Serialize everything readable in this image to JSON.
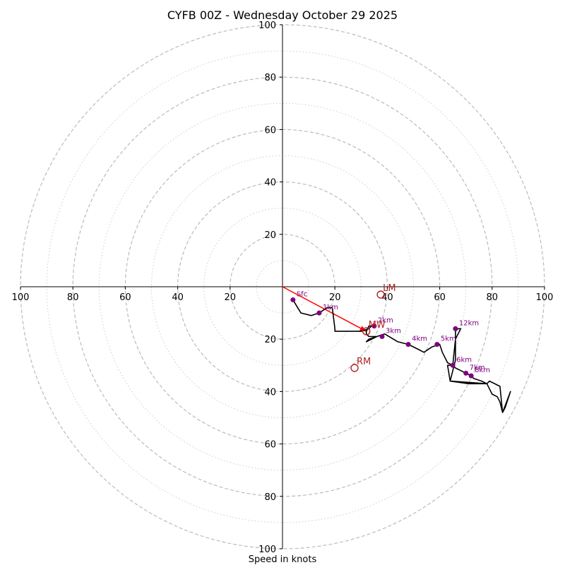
{
  "chart_data": {
    "type": "hodograph",
    "title": "CYFB 00Z - Wednesday October 29 2025",
    "xlabel": "Speed in knots",
    "range": [
      -100,
      100
    ],
    "ring_major": [
      20,
      40,
      60,
      80,
      100
    ],
    "ring_minor": [
      10,
      30,
      50,
      70,
      90
    ],
    "ticks": [
      {
        "v": -100,
        "label": "100"
      },
      {
        "v": -80,
        "label": "80"
      },
      {
        "v": -60,
        "label": "60"
      },
      {
        "v": -40,
        "label": "40"
      },
      {
        "v": -20,
        "label": "20"
      },
      {
        "v": 20,
        "label": "20"
      },
      {
        "v": 40,
        "label": "40"
      },
      {
        "v": 60,
        "label": "60"
      },
      {
        "v": 80,
        "label": "80"
      },
      {
        "v": 100,
        "label": "100"
      }
    ],
    "trace": [
      [
        4,
        -5
      ],
      [
        7,
        -10
      ],
      [
        11,
        -11
      ],
      [
        14,
        -10
      ],
      [
        17,
        -8
      ],
      [
        19,
        -8
      ],
      [
        20,
        -16
      ],
      [
        20,
        -17
      ],
      [
        27,
        -17
      ],
      [
        30,
        -17
      ],
      [
        33,
        -16
      ],
      [
        34,
        -15
      ],
      [
        35,
        -15
      ],
      [
        33,
        -15
      ],
      [
        32,
        -17
      ],
      [
        32,
        -18
      ],
      [
        33,
        -19
      ],
      [
        36,
        -19
      ],
      [
        32,
        -21
      ],
      [
        33,
        -20
      ],
      [
        39,
        -18
      ],
      [
        44,
        -21
      ],
      [
        48,
        -22
      ],
      [
        52,
        -24
      ],
      [
        54,
        -25
      ],
      [
        57,
        -23
      ],
      [
        60,
        -22
      ],
      [
        61,
        -25
      ],
      [
        63,
        -29
      ],
      [
        65,
        -30
      ],
      [
        66,
        -31
      ],
      [
        68,
        -32
      ],
      [
        70,
        -33
      ],
      [
        72,
        -34
      ],
      [
        73,
        -35
      ],
      [
        76,
        -36
      ],
      [
        78,
        -37
      ],
      [
        71,
        -37
      ],
      [
        64,
        -36
      ],
      [
        66,
        -28
      ],
      [
        66,
        -17
      ],
      [
        67,
        -16
      ],
      [
        68,
        -16
      ],
      [
        66,
        -20
      ],
      [
        65,
        -30
      ],
      [
        63,
        -30
      ],
      [
        64,
        -36
      ],
      [
        78,
        -37
      ],
      [
        79,
        -39
      ],
      [
        80,
        -41
      ],
      [
        82,
        -42
      ],
      [
        83,
        -44
      ],
      [
        84,
        -48
      ],
      [
        85,
        -46
      ],
      [
        86,
        -43
      ],
      [
        87,
        -40
      ],
      [
        84,
        -48
      ],
      [
        83,
        -38
      ],
      [
        79,
        -36
      ],
      [
        78,
        -37
      ]
    ],
    "height_points": [
      {
        "u": 4,
        "v": -5,
        "label": "Sfc"
      },
      {
        "u": 14,
        "v": -10,
        "label": "1km"
      },
      {
        "u": 35,
        "v": -15,
        "label": "2km"
      },
      {
        "u": 38,
        "v": -19,
        "label": "3km"
      },
      {
        "u": 48,
        "v": -22,
        "label": "4km"
      },
      {
        "u": 59,
        "v": -22,
        "label": "5km"
      },
      {
        "u": 65,
        "v": -30,
        "label": "6km"
      },
      {
        "u": 70,
        "v": -33,
        "label": "7km"
      },
      {
        "u": 72,
        "v": -34,
        "label": "8km"
      },
      {
        "u": 66,
        "v": -16,
        "label": "12km"
      }
    ],
    "storm_motion": [
      {
        "u": 37.5,
        "v": -3,
        "label": "LM"
      },
      {
        "u": 32,
        "v": -17,
        "label": "MW"
      },
      {
        "u": 27.5,
        "v": -31,
        "label": "RM"
      }
    ],
    "shear_vector": {
      "from": [
        0,
        0
      ],
      "to": [
        32,
        -17
      ]
    },
    "colors": {
      "trace": "#000000",
      "points": "#800080",
      "labels": "#800080",
      "motion": "#b22222",
      "shear": "#ff0000",
      "ring_major": "#bbbbbb",
      "ring_minor": "#cccccc",
      "axis": "#000000"
    }
  }
}
